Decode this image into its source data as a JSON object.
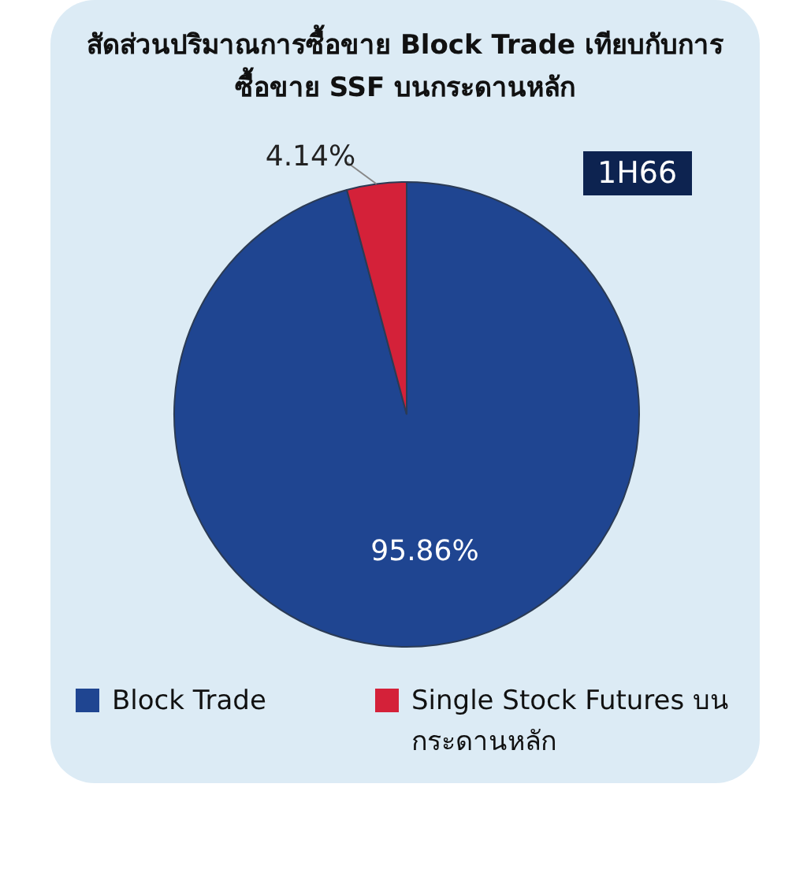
{
  "chart_data": {
    "type": "pie",
    "title": "สัดส่วนปริมาณการซื้อขาย Block Trade เทียบกับการซื้อขาย SSF บนกระดานหลัก",
    "categories": [
      "Block Trade",
      "Single Stock Futures บนกระดานหลัก"
    ],
    "values": [
      95.86,
      4.14
    ],
    "colors": [
      "#1f4591",
      "#d42139"
    ],
    "value_labels": [
      "95.86%",
      "4.14%"
    ],
    "annotations": [
      "1H66"
    ],
    "legend": "bottom"
  }
}
